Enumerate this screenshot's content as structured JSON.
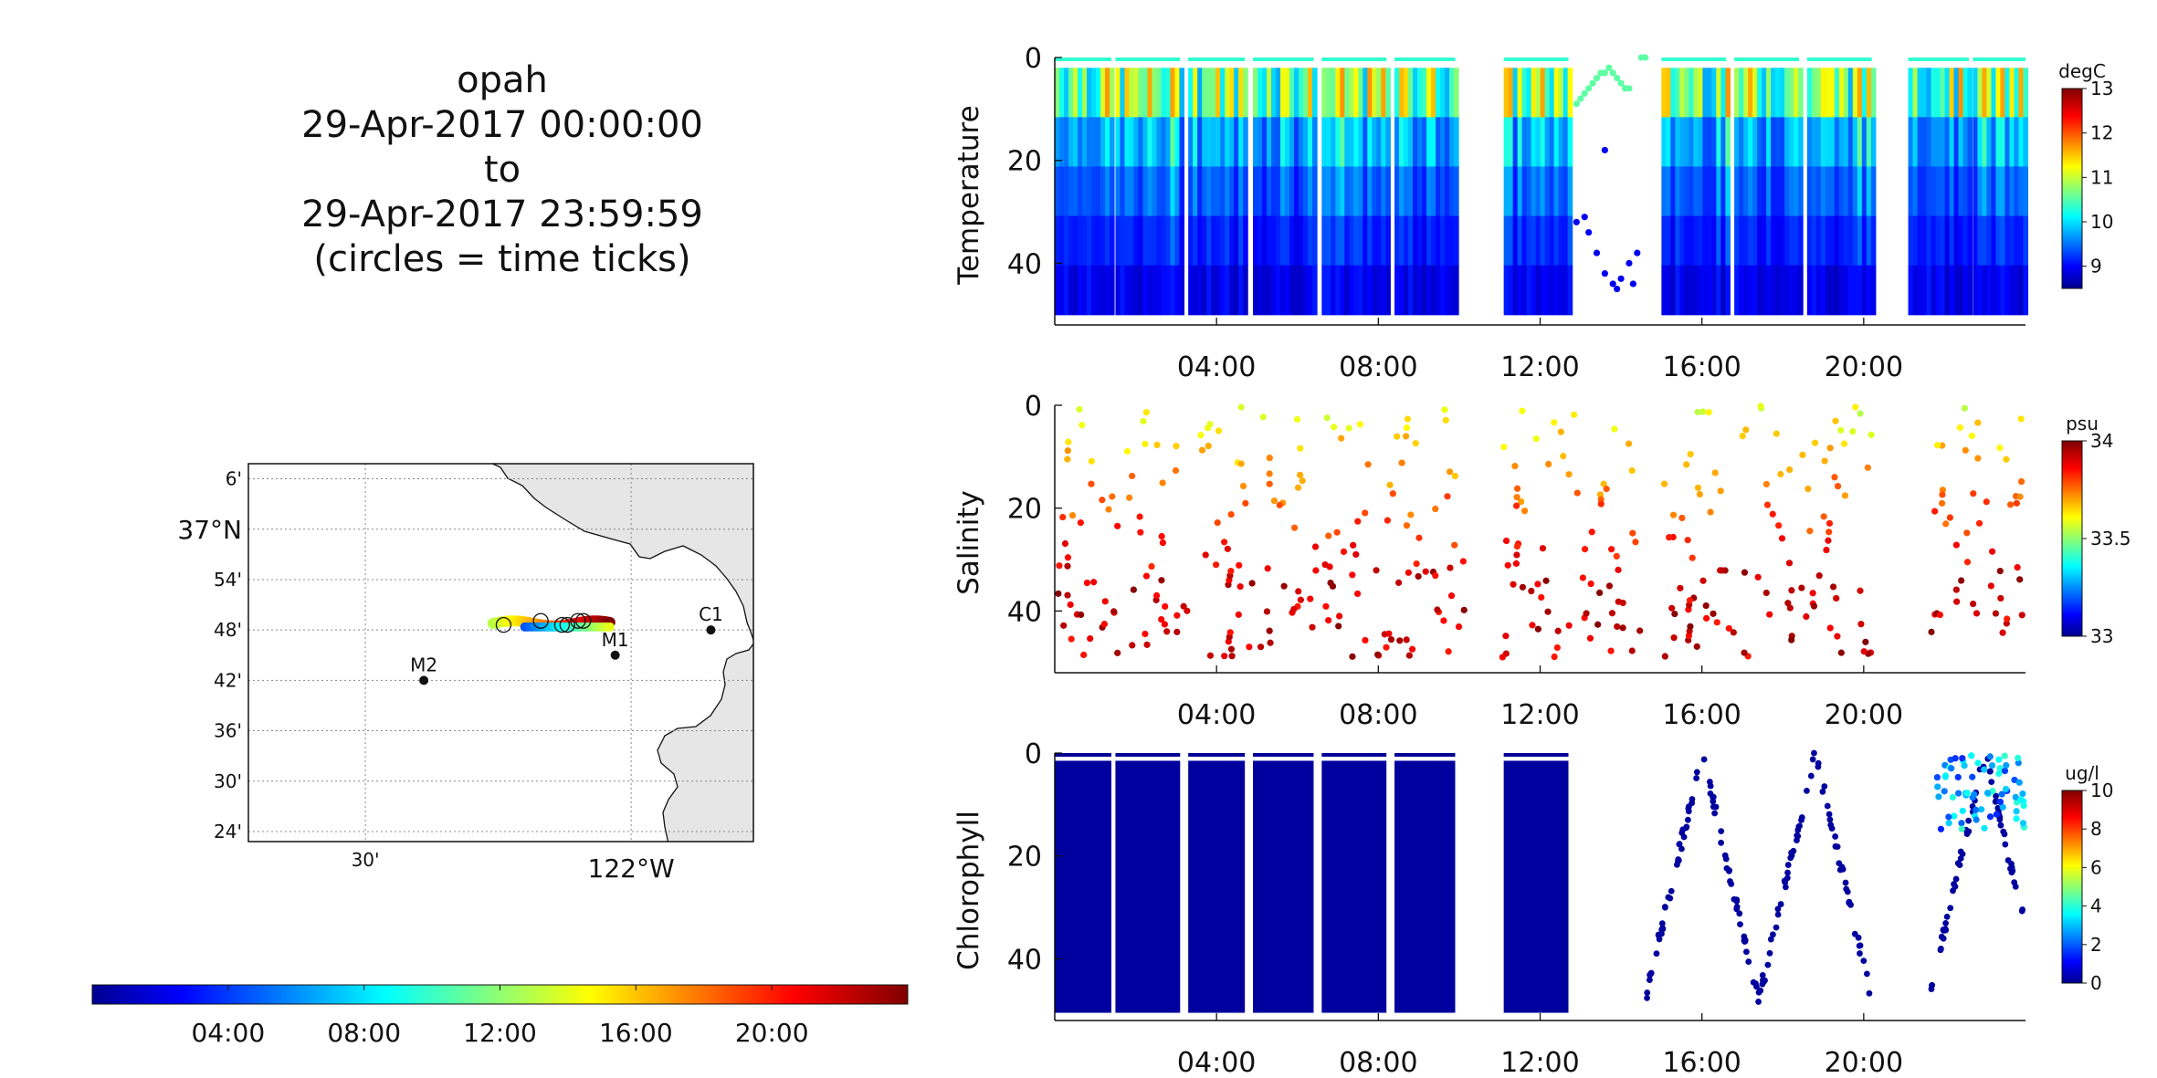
{
  "header": {
    "lines": [
      "opah",
      "29-Apr-2017 00:00:00",
      "to",
      "29-Apr-2017 23:59:59",
      "(circles = time ticks)"
    ]
  },
  "map": {
    "lat_ticks": [
      "6'",
      "37°N",
      "54'",
      "48'",
      "42'",
      "36'",
      "30'",
      "24'"
    ],
    "lon_ticks": [
      "30'",
      "122°W"
    ],
    "stations": [
      {
        "name": "M2",
        "lon": -122.39,
        "lat": 36.7
      },
      {
        "name": "M1",
        "lon": -122.03,
        "lat": 36.75
      },
      {
        "name": "C1",
        "lon": -121.85,
        "lat": 36.8
      }
    ],
    "land_color": "#e6e6e6",
    "colorbar_ticks": [
      "04:00",
      "08:00",
      "12:00",
      "16:00",
      "20:00"
    ]
  },
  "chart_data": [
    {
      "type": "heatmap",
      "ylabel": "Temperature",
      "x_unit": "hours since 29-Apr-2017 00:00",
      "xlim": [
        0,
        24
      ],
      "ylim": [
        52,
        0
      ],
      "xticks": [
        "04:00",
        "08:00",
        "12:00",
        "16:00",
        "20:00"
      ],
      "yticks": [
        0,
        20,
        40
      ],
      "colorbar": {
        "unit": "degC",
        "range": [
          8.5,
          13
        ],
        "ticks": [
          9,
          10,
          11,
          12,
          13
        ]
      },
      "profile_segments": [
        {
          "start": 0.0,
          "end": 1.4
        },
        {
          "start": 1.5,
          "end": 3.1
        },
        {
          "start": 3.3,
          "end": 4.7
        },
        {
          "start": 4.9,
          "end": 6.4
        },
        {
          "start": 6.6,
          "end": 8.2
        },
        {
          "start": 8.4,
          "end": 9.9
        },
        {
          "start": 11.1,
          "end": 12.7
        },
        {
          "start": 15.0,
          "end": 16.6
        },
        {
          "start": 16.8,
          "end": 18.4
        },
        {
          "start": 18.6,
          "end": 20.2
        },
        {
          "start": 21.1,
          "end": 22.6
        },
        {
          "start": 22.7,
          "end": 24.0
        }
      ],
      "profile_color_range": {
        "surface": [
          9.8,
          11.8
        ],
        "bottom": [
          8.8,
          9.2
        ]
      },
      "sparse_points": [
        {
          "t": 12.9,
          "d": 9
        },
        {
          "t": 13.0,
          "d": 8
        },
        {
          "t": 13.1,
          "d": 7
        },
        {
          "t": 13.2,
          "d": 6
        },
        {
          "t": 13.3,
          "d": 5
        },
        {
          "t": 13.4,
          "d": 4
        },
        {
          "t": 13.5,
          "d": 3
        },
        {
          "t": 13.6,
          "d": 3
        },
        {
          "t": 13.7,
          "d": 2
        },
        {
          "t": 13.8,
          "d": 3
        },
        {
          "t": 13.9,
          "d": 4
        },
        {
          "t": 14.0,
          "d": 5
        },
        {
          "t": 14.1,
          "d": 6
        },
        {
          "t": 14.2,
          "d": 6
        },
        {
          "t": 14.5,
          "d": 0
        },
        {
          "t": 14.6,
          "d": 0
        },
        {
          "t": 13.6,
          "d": 18
        },
        {
          "t": 12.9,
          "d": 32
        },
        {
          "t": 13.1,
          "d": 31
        },
        {
          "t": 13.2,
          "d": 34
        },
        {
          "t": 13.4,
          "d": 38
        },
        {
          "t": 13.6,
          "d": 42
        },
        {
          "t": 13.8,
          "d": 44
        },
        {
          "t": 14.0,
          "d": 43
        },
        {
          "t": 14.2,
          "d": 40
        },
        {
          "t": 14.4,
          "d": 38
        },
        {
          "t": 13.9,
          "d": 45
        },
        {
          "t": 14.3,
          "d": 44
        }
      ]
    },
    {
      "type": "scatter",
      "ylabel": "Salinity",
      "x_unit": "hours since 29-Apr-2017 00:00",
      "xlim": [
        0,
        24
      ],
      "ylim": [
        52,
        0
      ],
      "xticks": [
        "04:00",
        "08:00",
        "12:00",
        "16:00",
        "20:00"
      ],
      "yticks": [
        0,
        20,
        40
      ],
      "colorbar": {
        "unit": "psu",
        "range": [
          33,
          34
        ],
        "ticks": [
          33,
          33.5,
          34
        ]
      },
      "surface_salinity": 33.6,
      "deep_salinity": 33.95,
      "data_windows": [
        {
          "start": 0.0,
          "end": 3.3
        },
        {
          "start": 3.6,
          "end": 10.2
        },
        {
          "start": 11.0,
          "end": 14.5
        },
        {
          "start": 15.0,
          "end": 20.2
        },
        {
          "start": 21.6,
          "end": 24.0
        }
      ]
    },
    {
      "type": "heatmap",
      "ylabel": "Chlorophyll",
      "x_unit": "hours since 29-Apr-2017 00:00",
      "xlim": [
        0,
        24
      ],
      "ylim": [
        52,
        0
      ],
      "xticks": [
        "04:00",
        "08:00",
        "12:00",
        "16:00",
        "20:00"
      ],
      "yticks": [
        0,
        20,
        40
      ],
      "colorbar": {
        "unit": "ug/l",
        "range": [
          0,
          10
        ],
        "ticks": [
          0,
          2,
          4,
          6,
          8,
          10
        ]
      },
      "profile_segments": [
        {
          "start": 0.0,
          "end": 1.4
        },
        {
          "start": 1.5,
          "end": 3.1
        },
        {
          "start": 3.3,
          "end": 4.7
        },
        {
          "start": 4.9,
          "end": 6.4
        },
        {
          "start": 6.6,
          "end": 8.2
        },
        {
          "start": 8.4,
          "end": 9.9
        },
        {
          "start": 11.1,
          "end": 12.7
        }
      ],
      "profile_value": 0.3,
      "sparse_windows": [
        {
          "start": 14.6,
          "end": 20.2
        },
        {
          "start": 21.6,
          "end": 24.0
        }
      ],
      "bloom_patch": {
        "t_range": [
          21.8,
          24.0
        ],
        "d_range": [
          0,
          15
        ],
        "value_range": [
          1.5,
          4.5
        ]
      }
    }
  ]
}
